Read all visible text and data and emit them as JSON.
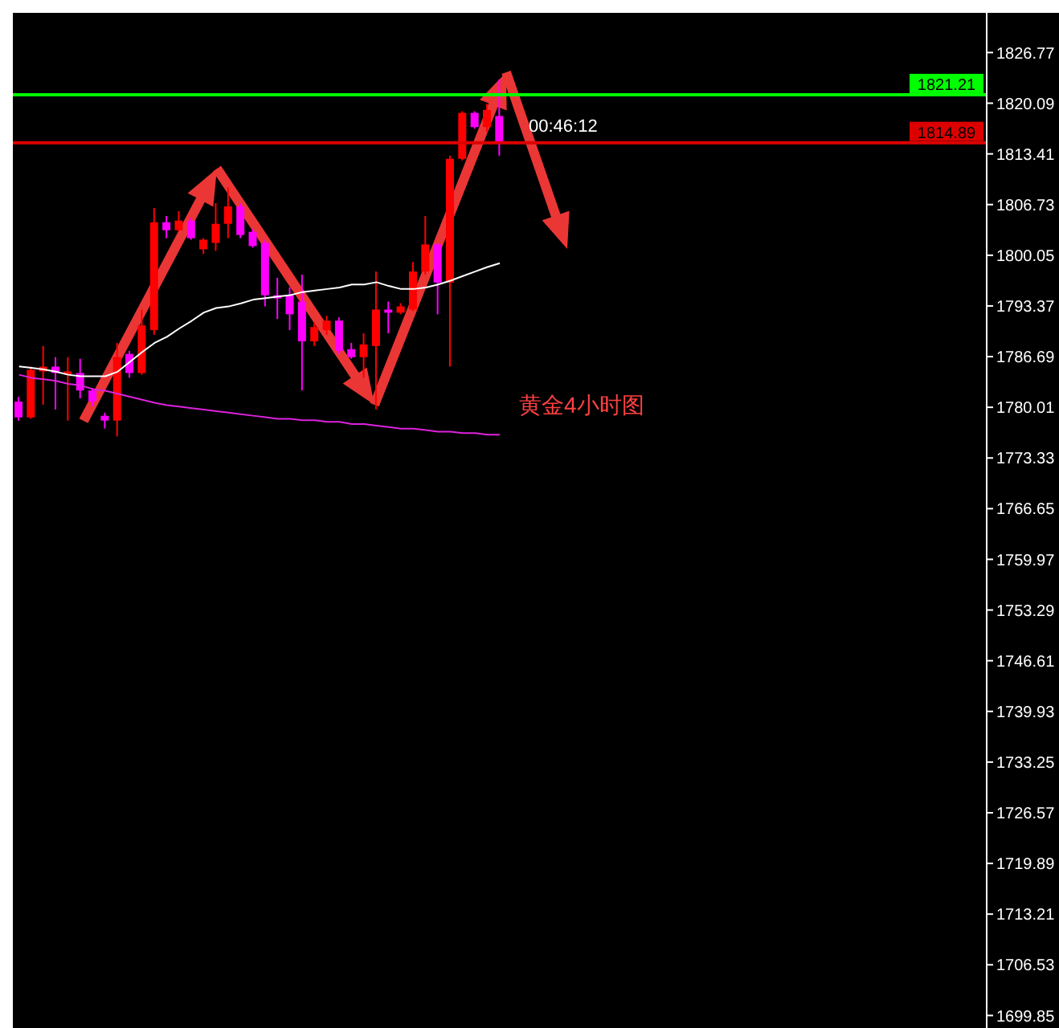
{
  "chart_data": {
    "type": "candlestick",
    "annotations": [
      "00:46:12",
      "黄金4小时图"
    ],
    "categories": [
      null,
      null,
      null,
      null,
      null,
      null,
      null,
      null,
      null,
      null,
      null,
      null,
      null,
      null,
      null,
      null,
      null,
      null,
      null,
      null,
      null,
      null,
      null,
      null,
      null,
      null,
      null,
      null,
      null,
      null,
      null,
      null,
      null,
      null,
      null,
      null,
      null,
      null,
      null,
      null,
      null,
      null,
      null,
      null,
      null,
      null,
      null,
      null,
      null,
      null,
      null,
      null,
      null,
      null,
      null,
      null,
      null,
      null,
      null,
      null,
      null,
      null,
      null,
      null,
      null,
      null,
      null,
      null,
      null,
      null,
      null,
      null,
      null,
      null,
      null,
      null,
      null,
      null,
      null
    ],
    "ohlc": [
      [
        1780.77,
        1781.39,
        1778.26,
        1778.68
      ],
      [
        1778.68,
        1785.37,
        1778.5,
        1784.95
      ],
      [
        1784.74,
        1788.09,
        1780.35,
        1785.37
      ],
      [
        1785.37,
        1786.62,
        1779.72,
        1784.53
      ],
      [
        1784.32,
        1786.62,
        1778.26,
        1784.74
      ],
      [
        1784.53,
        1786.41,
        1781.19,
        1782.23
      ],
      [
        1782.23,
        1782.44,
        1780.14,
        1780.77
      ],
      [
        1778.89,
        1779.3,
        1777.21,
        1778.26
      ],
      [
        1778.26,
        1788.5,
        1776.17,
        1786.62
      ],
      [
        1787.04,
        1787.46,
        1783.9,
        1784.53
      ],
      [
        1784.53,
        1792.89,
        1784.3,
        1790.8
      ],
      [
        1790.18,
        1806.28,
        1789.55,
        1804.4
      ],
      [
        1804.4,
        1805.23,
        1802.3,
        1803.35
      ],
      [
        1803.35,
        1805.86,
        1803.2,
        1804.61
      ],
      [
        1804.61,
        1805.02,
        1802.1,
        1802.3
      ],
      [
        1800.84,
        1802.3,
        1800.21,
        1802.1
      ],
      [
        1801.68,
        1806.91,
        1800.63,
        1804.19
      ],
      [
        1804.19,
        1808.99,
        1802.3,
        1806.49
      ],
      [
        1806.49,
        1806.91,
        1802.3,
        1802.72
      ],
      [
        1803.14,
        1803.56,
        1801.05,
        1801.26
      ],
      [
        1801.68,
        1802.1,
        1793.31,
        1794.78
      ],
      [
        1794.78,
        1797.08,
        1791.64,
        1794.36
      ],
      [
        1794.78,
        1795.82,
        1790.18,
        1792.27
      ],
      [
        1793.94,
        1797.5,
        1782.23,
        1788.71
      ],
      [
        1788.71,
        1791.22,
        1788.09,
        1790.59
      ],
      [
        1790.18,
        1792.06,
        1789.55,
        1791.43
      ],
      [
        1791.43,
        1791.85,
        1787.04,
        1787.46
      ],
      [
        1787.67,
        1788.5,
        1786.41,
        1786.62
      ],
      [
        1786.62,
        1789.76,
        1783.9,
        1788.3
      ],
      [
        1788.09,
        1797.91,
        1779.72,
        1792.89
      ],
      [
        1792.89,
        1793.94,
        1789.76,
        1792.48
      ],
      [
        1792.48,
        1793.73,
        1792.27,
        1793.31
      ],
      [
        1792.89,
        1799.17,
        1792.69,
        1797.91
      ],
      [
        1797.91,
        1805.23,
        1797.5,
        1801.47
      ],
      [
        1801.47,
        1801.68,
        1792.27,
        1796.45
      ],
      [
        1796.45,
        1813.18,
        1785.37,
        1812.76
      ],
      [
        1812.76,
        1819.03,
        1812.55,
        1818.82
      ],
      [
        1818.82,
        1819.03,
        1816.73,
        1816.94
      ],
      [
        1816.94,
        1820.0,
        1816.3,
        1819.2
      ],
      [
        1818.4,
        1823.22,
        1813.18,
        1814.89
      ],
      null,
      null,
      null,
      null,
      null,
      null,
      null,
      null,
      null,
      null,
      null,
      null,
      null,
      null,
      null,
      null,
      null,
      null,
      null,
      null,
      null,
      null,
      null,
      null,
      null,
      null,
      null,
      null,
      null,
      null,
      null,
      null,
      null,
      null,
      null,
      null,
      null,
      null,
      null
    ],
    "colors": [
      "#ff00ff",
      "#ff0000",
      "#ff0000",
      "#ff00ff",
      "#ff0000",
      "#ff00ff",
      "#ff00ff",
      "#ff00ff",
      "#ff0000",
      "#ff00ff",
      "#ff0000",
      "#ff0000",
      "#ff00ff",
      "#ff0000",
      "#ff00ff",
      "#ff0000",
      "#ff0000",
      "#ff0000",
      "#ff00ff",
      "#ff00ff",
      "#ff00ff",
      "#ff00ff",
      "#ff00ff",
      "#ff00ff",
      "#ff0000",
      "#ff0000",
      "#ff00ff",
      "#ff00ff",
      "#ff0000",
      "#ff0000",
      "#ff00ff",
      "#ff0000",
      "#ff0000",
      "#ff0000",
      "#ff00ff",
      "#ff0000",
      "#ff0000",
      "#ff00ff",
      "#ff0000",
      "#ff00ff",
      null,
      null,
      null,
      null,
      null,
      null,
      null,
      null,
      null,
      null,
      null,
      null,
      null,
      null,
      null,
      null,
      null,
      null,
      null,
      null,
      null,
      null,
      null,
      null,
      null,
      null,
      null,
      null,
      null,
      null,
      null,
      null,
      null,
      null,
      null,
      null,
      null,
      null,
      null
    ],
    "series": [
      {
        "type": "line",
        "color": "#ffffff",
        "values": [
          1785.4,
          1785.2,
          1785.0,
          1784.7,
          1784.3,
          1784.1,
          1784.1,
          1784.1,
          1784.7,
          1786.0,
          1787.3,
          1788.5,
          1789.3,
          1790.4,
          1791.4,
          1792.5,
          1793.1,
          1793.3,
          1793.7,
          1794.2,
          1794.4,
          1794.6,
          1794.8,
          1795.2,
          1795.4,
          1795.6,
          1795.8,
          1796.2,
          1796.2,
          1796.5,
          1796.0,
          1795.6,
          1795.6,
          1795.8,
          1796.2,
          1796.7,
          1797.3,
          1797.9,
          1798.5,
          1799.0,
          null,
          null,
          null,
          null,
          null,
          null,
          null,
          null,
          null,
          null,
          null,
          null,
          null,
          null,
          null,
          null,
          null,
          null,
          null,
          null,
          null,
          null,
          null,
          null,
          null,
          null,
          null,
          null,
          null,
          null,
          null,
          null,
          null,
          null,
          null,
          null,
          null,
          null,
          null
        ]
      },
      {
        "type": "line",
        "color": "#dd22dd",
        "values": [
          1784.3,
          1783.9,
          1783.7,
          1783.5,
          1783.1,
          1782.9,
          1782.4,
          1782.2,
          1781.8,
          1781.4,
          1781.0,
          1780.6,
          1780.3,
          1780.1,
          1779.9,
          1779.7,
          1779.5,
          1779.3,
          1779.1,
          1778.9,
          1778.7,
          1778.5,
          1778.5,
          1778.3,
          1778.3,
          1778.1,
          1778.1,
          1777.8,
          1777.8,
          1777.6,
          1777.4,
          1777.2,
          1777.2,
          1777.0,
          1776.8,
          1776.8,
          1776.6,
          1776.6,
          1776.4,
          1776.4,
          null,
          null,
          null,
          null,
          null,
          null,
          null,
          null,
          null,
          null,
          null,
          null,
          null,
          null,
          null,
          null,
          null,
          null,
          null,
          null,
          null,
          null,
          null,
          null,
          null,
          null,
          null,
          null,
          null,
          null,
          null,
          null,
          null,
          null,
          null,
          null,
          null,
          null,
          null
        ]
      }
    ],
    "ylim": [
      1698.2,
      1832.0
    ],
    "yticks": [
      1826.77,
      1820.09,
      1813.41,
      1806.73,
      1800.05,
      1793.37,
      1786.69,
      1780.01,
      1773.33,
      1766.65,
      1759.97,
      1753.29,
      1746.61,
      1739.93,
      1733.25,
      1726.57,
      1719.89,
      1713.21,
      1706.53,
      1699.85
    ],
    "ref_lines": [
      {
        "axis": "y",
        "value": 1821.21,
        "label": "1821.21",
        "color": "#00ff00"
      },
      {
        "axis": "y",
        "value": 1814.89,
        "label": "1814.89",
        "color": "#dd0000"
      }
    ],
    "tick_labels": "y",
    "marker": "none"
  }
}
